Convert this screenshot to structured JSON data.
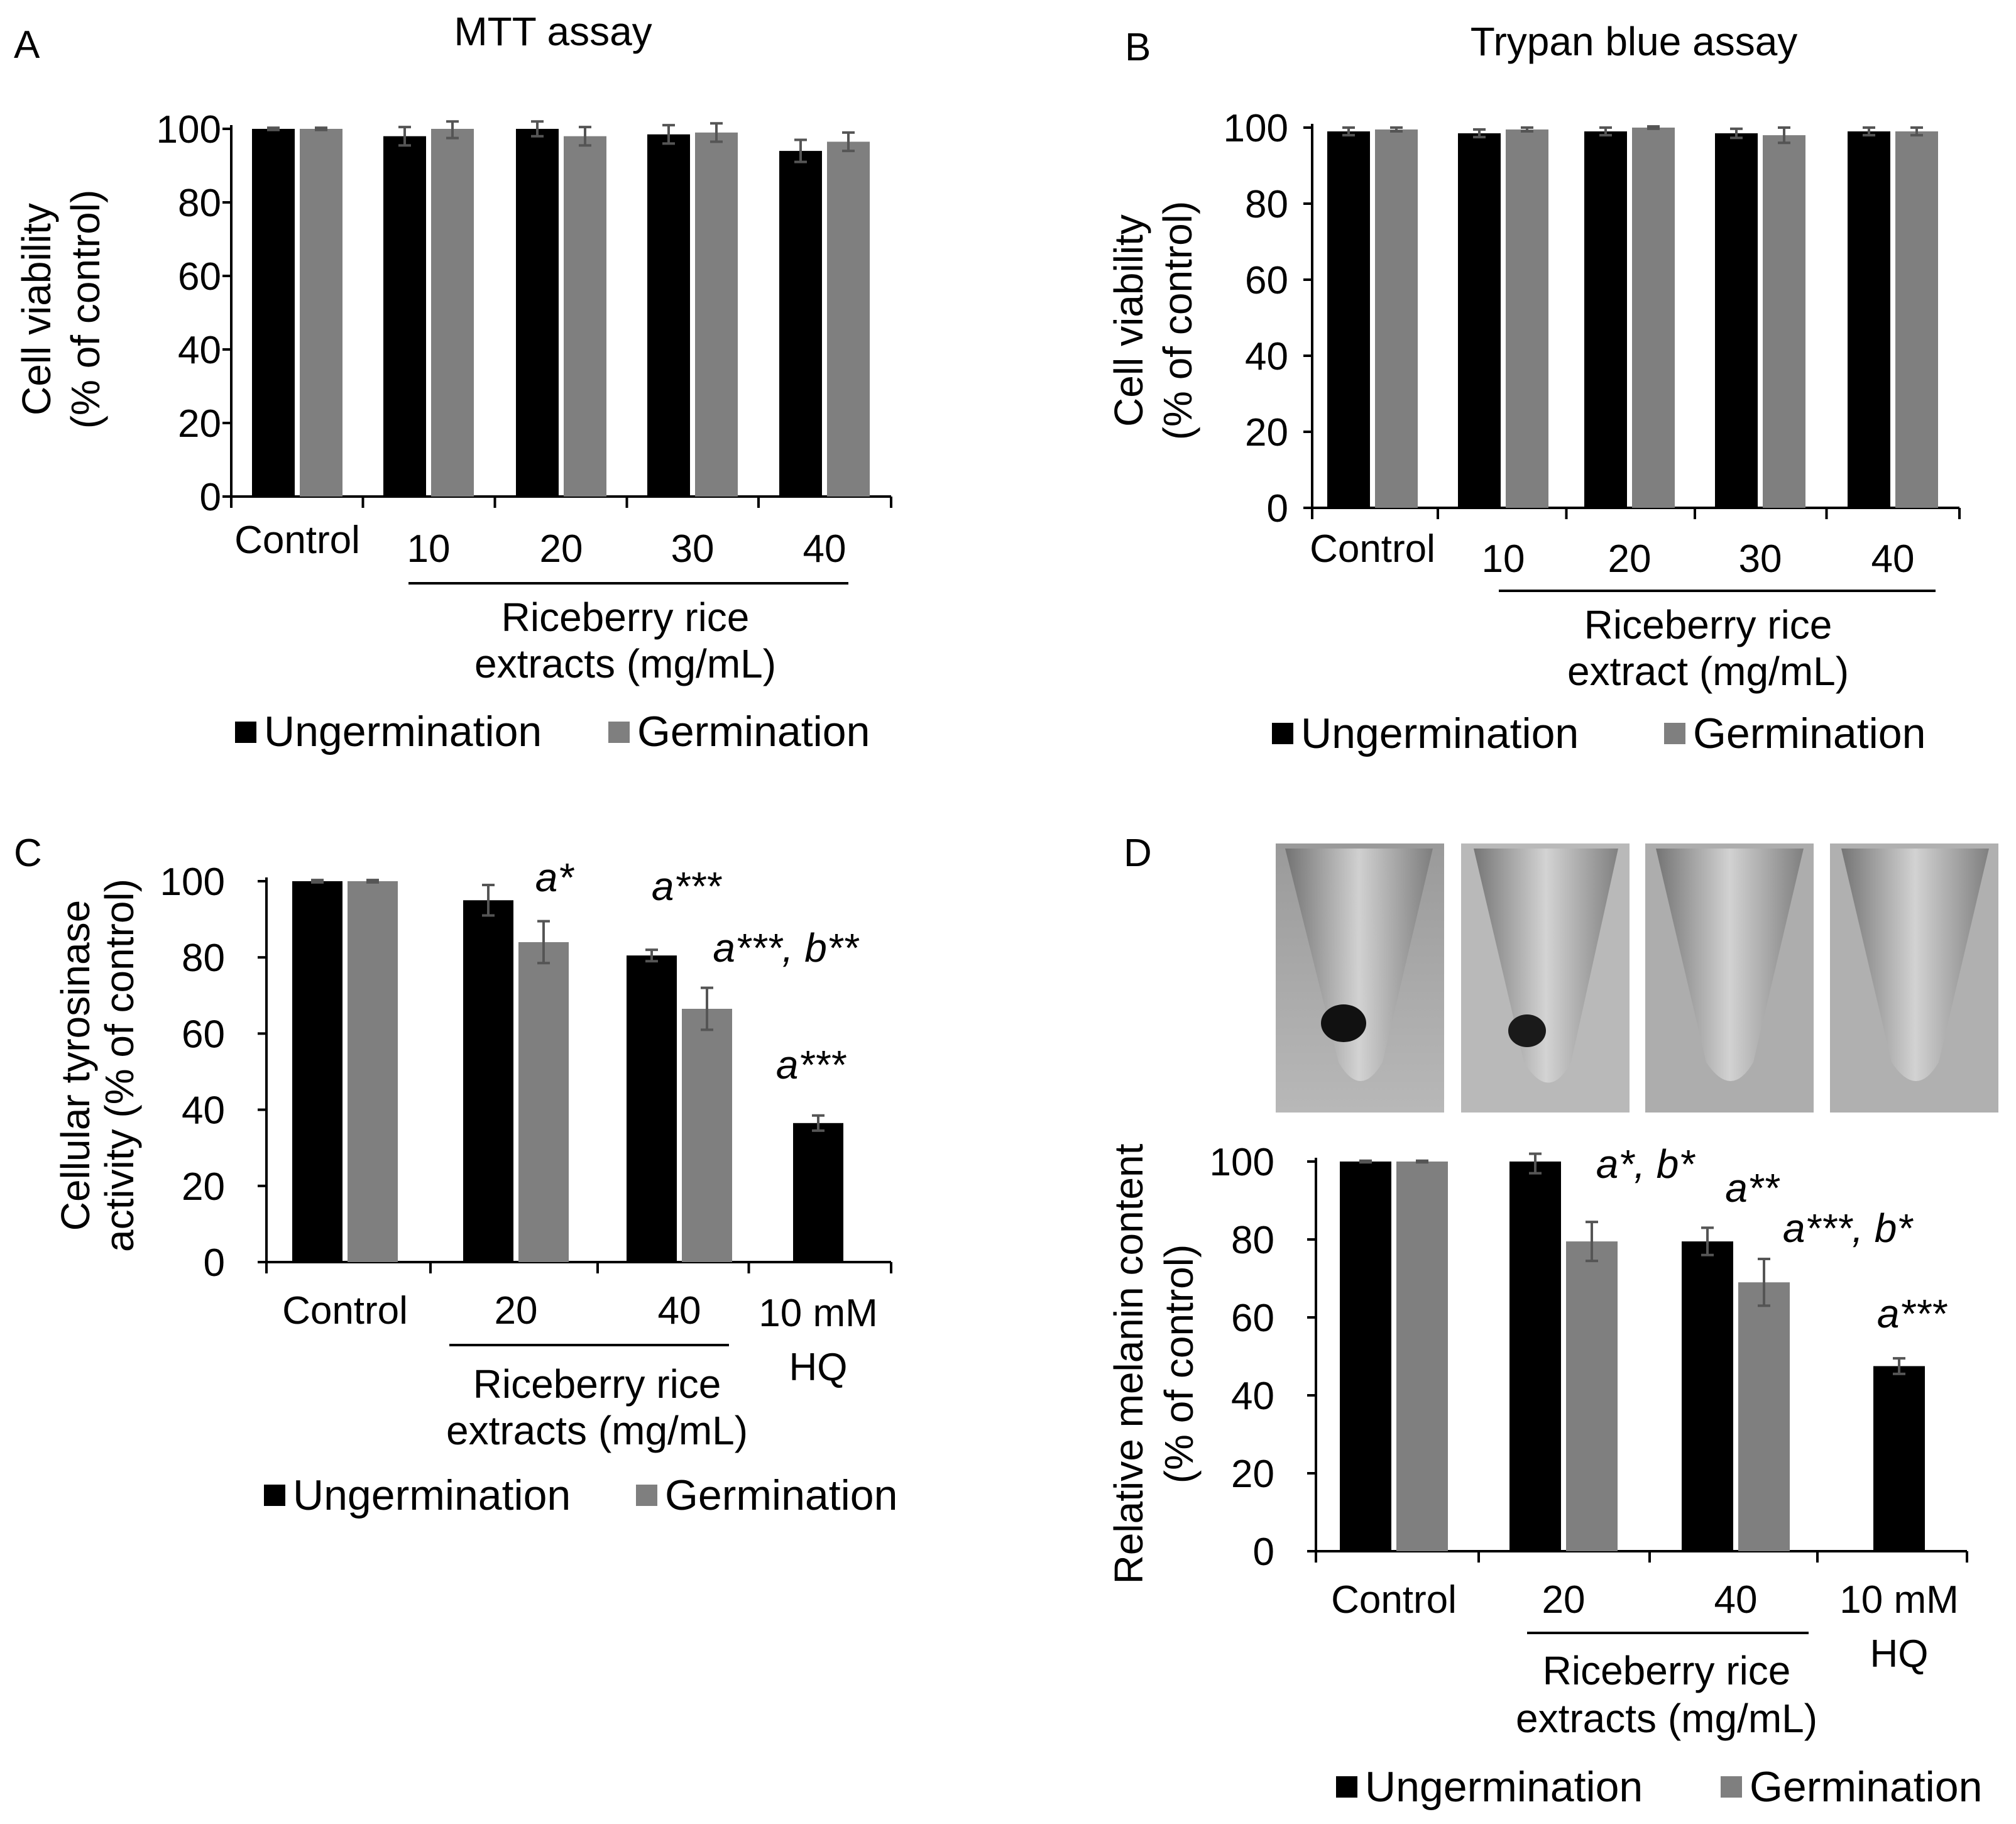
{
  "colors": {
    "ungermination": "#000000",
    "germination": "#7f7f7f",
    "error_bar": "#555555"
  },
  "chart_data": [
    {
      "id": "A",
      "type": "bar",
      "panel_label": "A",
      "title": "MTT assay",
      "ylabel_line1": "Cell viability",
      "ylabel_line2": "(% of control)",
      "xgroup_label_line1": "Riceberry rice",
      "xgroup_label_line2": "extracts (mg/mL)",
      "ylim": [
        0,
        100
      ],
      "yticks": [
        0,
        20,
        40,
        60,
        80,
        100
      ],
      "categories": [
        "Control",
        "10",
        "20",
        "30",
        "40"
      ],
      "series": [
        {
          "name": "Ungermination",
          "values": [
            100,
            98,
            100,
            98.5,
            94
          ],
          "errors": [
            0.3,
            2.5,
            2,
            2.5,
            3
          ]
        },
        {
          "name": "Germination",
          "values": [
            100,
            100,
            98,
            99,
            96.5
          ],
          "errors": [
            0.3,
            2.5,
            2.5,
            2.5,
            2.5
          ]
        }
      ],
      "annotations": [],
      "legend": [
        "Ungermination",
        "Germination"
      ]
    },
    {
      "id": "B",
      "type": "bar",
      "panel_label": "B",
      "title": "Trypan blue assay",
      "ylabel_line1": "Cell viability",
      "ylabel_line2": "(% of control)",
      "xgroup_label_line1": "Riceberry rice",
      "xgroup_label_line2": "extract (mg/mL)",
      "ylim": [
        0,
        100
      ],
      "yticks": [
        0,
        20,
        40,
        60,
        80,
        100
      ],
      "categories": [
        "Control",
        "10",
        "20",
        "30",
        "40"
      ],
      "series": [
        {
          "name": "Ungermination",
          "values": [
            99,
            98.5,
            99,
            98.5,
            99
          ],
          "errors": [
            1,
            1,
            1,
            1.2,
            1
          ]
        },
        {
          "name": "Germination",
          "values": [
            99.5,
            99.5,
            100,
            98,
            99
          ],
          "errors": [
            0.5,
            0.5,
            0.3,
            2,
            1
          ]
        }
      ],
      "annotations": [],
      "legend": [
        "Ungermination",
        "Germination"
      ]
    },
    {
      "id": "C",
      "type": "bar",
      "panel_label": "C",
      "title": "",
      "ylabel_line1": "Cellular tyrosinase",
      "ylabel_line2": "activity (% of control)",
      "xgroup_label_line1": "Riceberry rice",
      "xgroup_label_line2": "extracts (mg/mL)",
      "hq_label_line1": "10 mM",
      "hq_label_line2": "HQ",
      "ylim": [
        0,
        100
      ],
      "yticks": [
        0,
        20,
        40,
        60,
        80,
        100
      ],
      "categories": [
        "Control",
        "20",
        "40",
        "10 mM HQ"
      ],
      "series": [
        {
          "name": "Ungermination",
          "values": [
            100,
            95,
            80.5,
            36.5
          ],
          "errors": [
            0.3,
            4,
            1.5,
            2
          ]
        },
        {
          "name": "Germination",
          "values": [
            100,
            84,
            66.5,
            null
          ],
          "errors": [
            0.3,
            5.5,
            5.5,
            null
          ]
        }
      ],
      "annotations": [
        "a*",
        "a***",
        "a***, b**",
        "a***"
      ],
      "legend": [
        "Ungermination",
        "Germination"
      ]
    },
    {
      "id": "D",
      "type": "bar",
      "panel_label": "D",
      "title": "",
      "ylabel_line1": "Relative melanin content",
      "ylabel_line2": "(% of control)",
      "xgroup_label_line1": "Riceberry rice",
      "xgroup_label_line2": "extracts (mg/mL)",
      "hq_label_line1": "10 mM",
      "hq_label_line2": "HQ",
      "ylim": [
        0,
        100
      ],
      "yticks": [
        0,
        20,
        40,
        60,
        80,
        100
      ],
      "categories": [
        "Control",
        "20",
        "40",
        "10 mM HQ"
      ],
      "series": [
        {
          "name": "Ungermination",
          "values": [
            100,
            100,
            79.5,
            47.5
          ],
          "errors": [
            0.2,
            3,
            3.5,
            2
          ]
        },
        {
          "name": "Germination",
          "values": [
            100,
            79.5,
            69,
            null
          ],
          "errors": [
            0.2,
            5,
            6,
            null
          ]
        }
      ],
      "annotations": [
        "a*, b*",
        "a**",
        "a***, b*",
        "a***"
      ],
      "legend": [
        "Ungermination",
        "Germination"
      ]
    }
  ]
}
